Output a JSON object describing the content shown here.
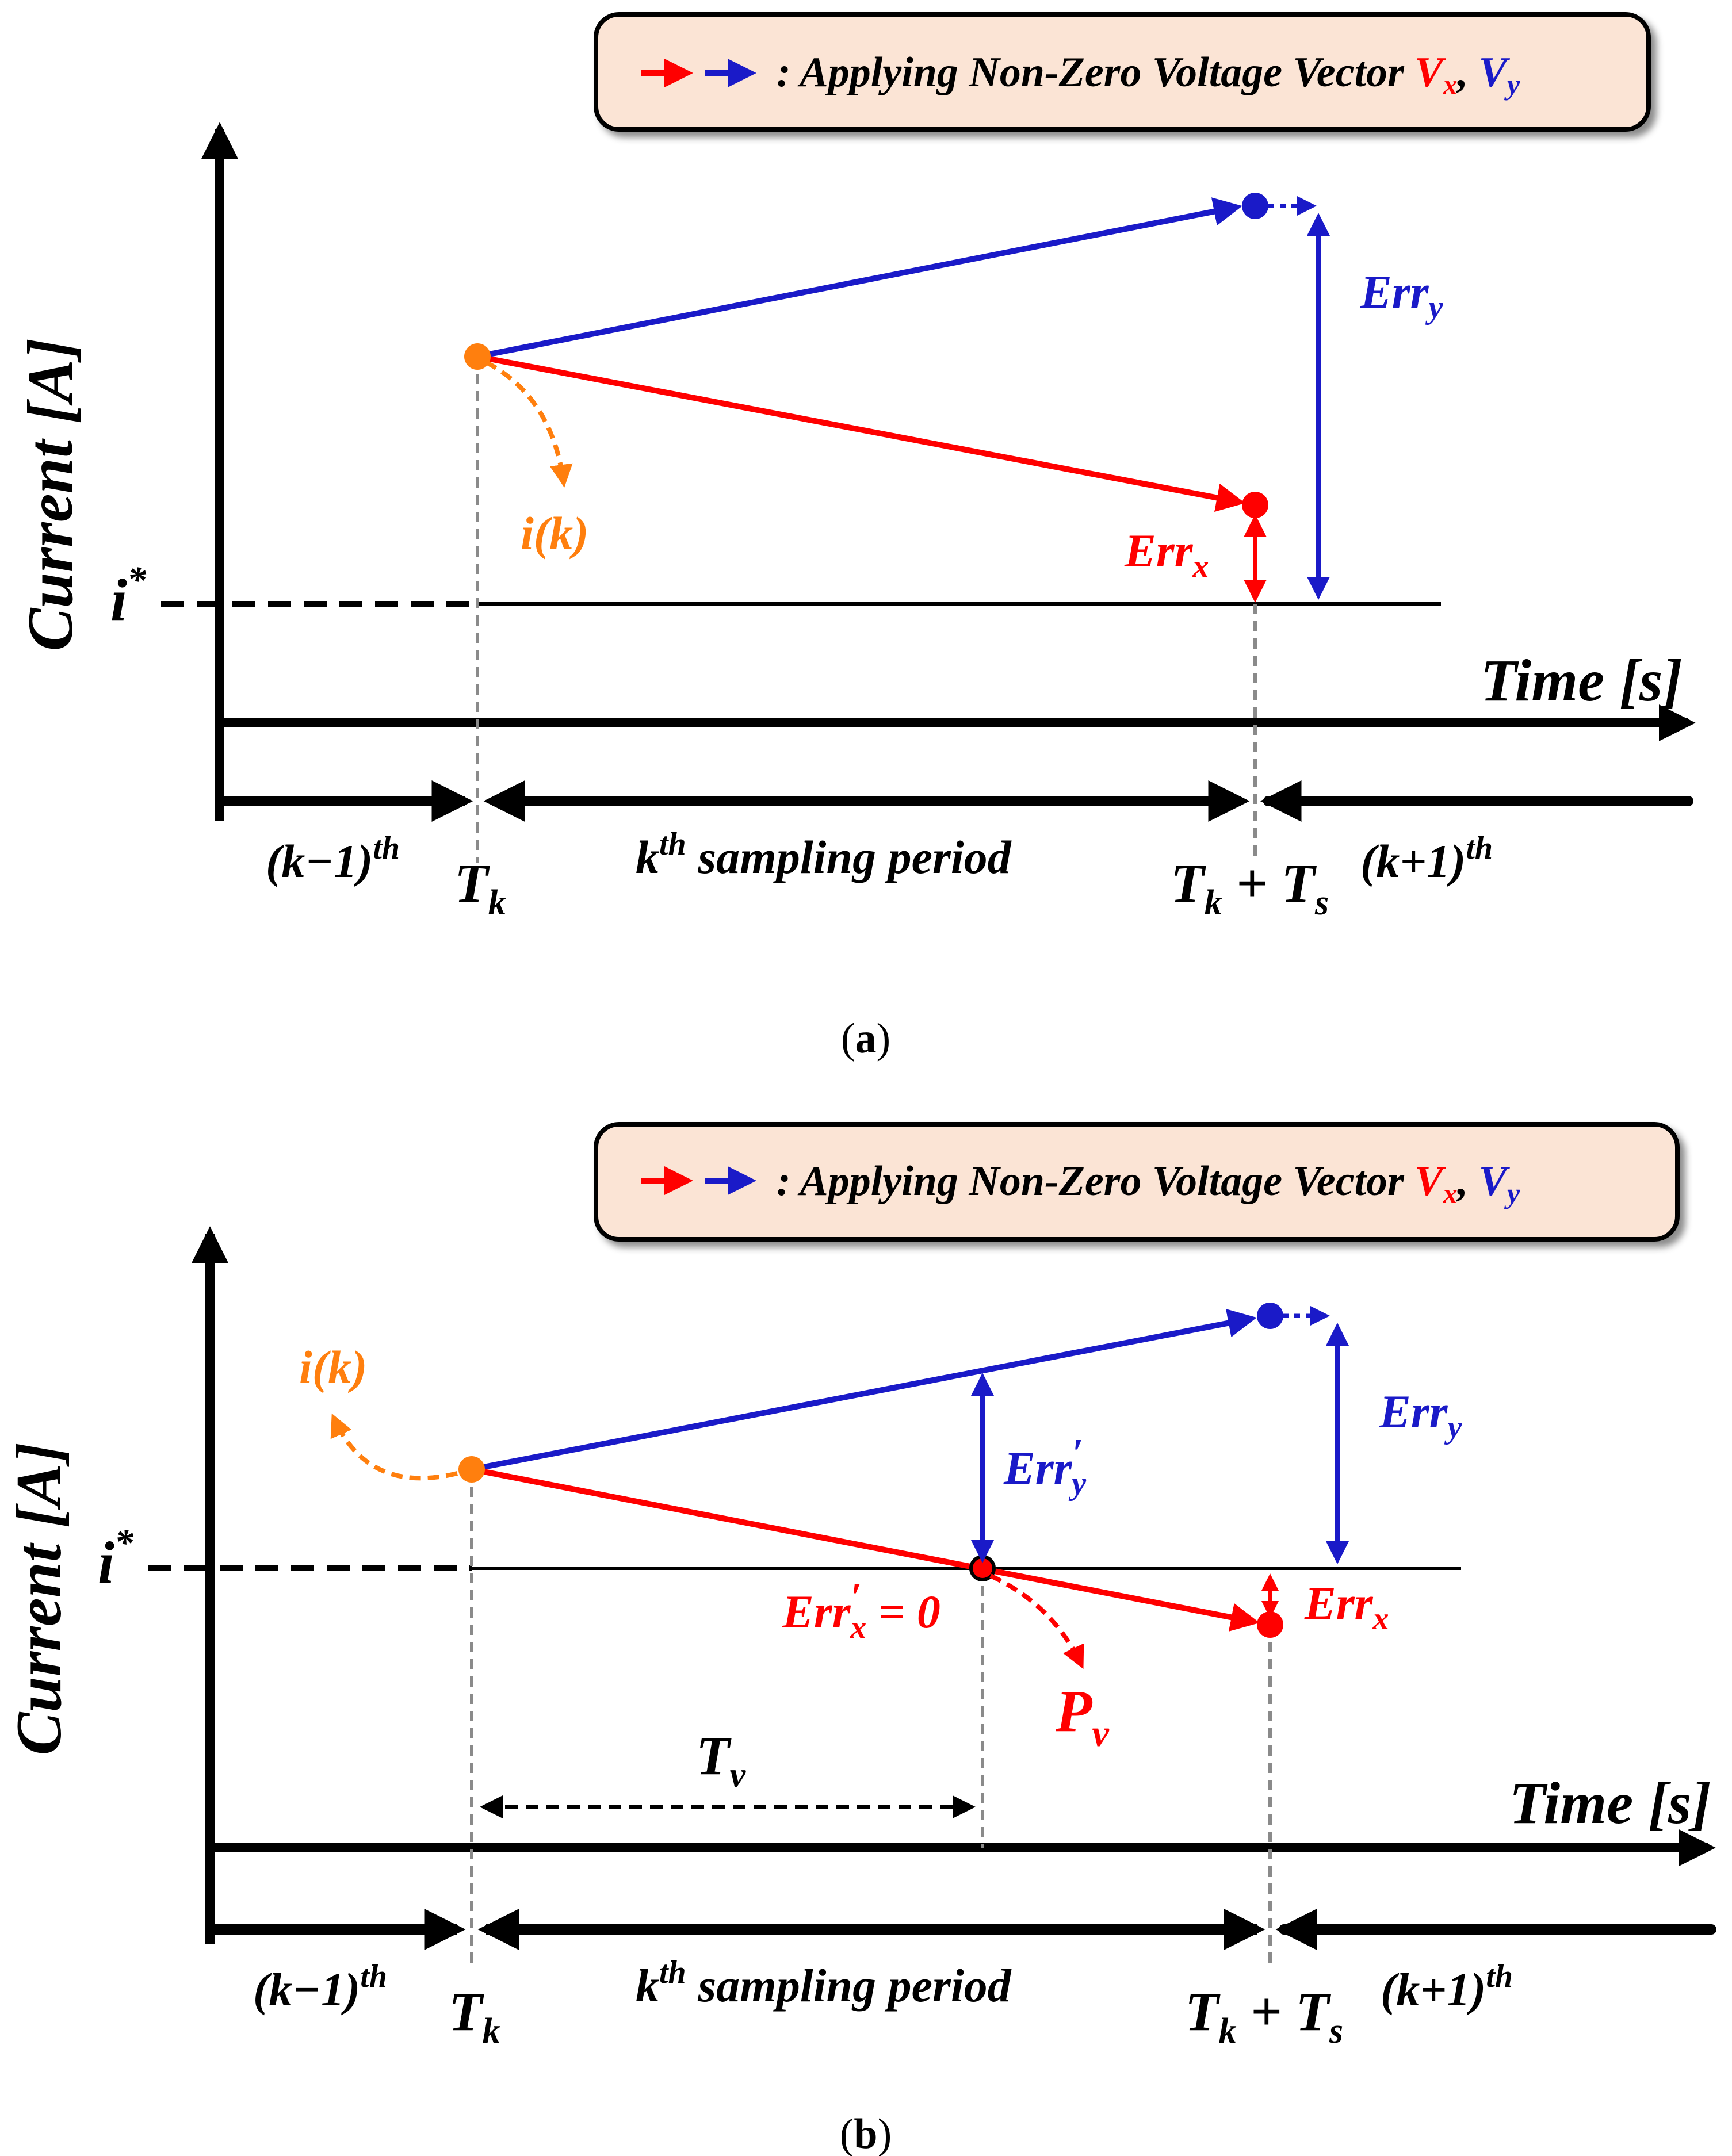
{
  "colors": {
    "red": "#ff0000",
    "blue": "#1a1ac8",
    "orange": "#ff7f0e",
    "black": "#000000",
    "gray": "#8a8a8a",
    "legend_fill": "#fbe4d5"
  },
  "panels": [
    {
      "id": "a",
      "caption": "a",
      "legend": {
        "colon": ":",
        "text": "Applying Non-Zero Voltage Vector",
        "vx_base": "V",
        "vx_sub": "x",
        "comma": ",",
        "vy_base": "V",
        "vy_sub": "y"
      },
      "y_axis_label": "Current [A]",
      "x_axis_label": "Time [s]",
      "ref_label_base": "i",
      "ref_label_sup": "*",
      "ik_label": "i(k)",
      "err_y": {
        "base": "Err",
        "sub": "y"
      },
      "err_x": {
        "base": "Err",
        "sub": "x"
      },
      "timeline": {
        "prev_base": "(k−1)",
        "prev_sup": "th",
        "tk_base": "T",
        "tk_sub": "k",
        "current_sup": "th",
        "current_base": "k",
        "current_text": "sampling period",
        "tks_plus": "+",
        "tks_t2": "T",
        "tks_sub2": "s",
        "next_base": "(k+1)",
        "next_sup": "th"
      }
    },
    {
      "id": "b",
      "caption": "b",
      "legend": {
        "colon": ":",
        "text": "Applying Non-Zero Voltage Vector",
        "vx_base": "V",
        "vx_sub": "x",
        "comma": ",",
        "vy_base": "V",
        "vy_sub": "y"
      },
      "y_axis_label": "Current [A]",
      "x_axis_label": "Time [s]",
      "ref_label_base": "i",
      "ref_label_sup": "*",
      "ik_label": "i(k)",
      "err_y": {
        "base": "Err",
        "sub": "y"
      },
      "err_x": {
        "base": "Err",
        "sub": "x"
      },
      "err_y_prime": {
        "base": "Err",
        "prime": "′",
        "sub": "y"
      },
      "err_x_prime": {
        "base": "Err",
        "prime": "′",
        "sub": "x",
        "eq": "= 0"
      },
      "pv": {
        "base": "P",
        "sub": "v"
      },
      "tv": {
        "base": "T",
        "sub": "v"
      },
      "timeline": {
        "prev_base": "(k−1)",
        "prev_sup": "th",
        "tk_base": "T",
        "tk_sub": "k",
        "current_sup": "th",
        "current_base": "k",
        "current_text": "sampling period",
        "tks_plus": "+",
        "tks_t2": "T",
        "tks_sub2": "s",
        "next_base": "(k+1)",
        "next_sup": "th"
      }
    }
  ]
}
